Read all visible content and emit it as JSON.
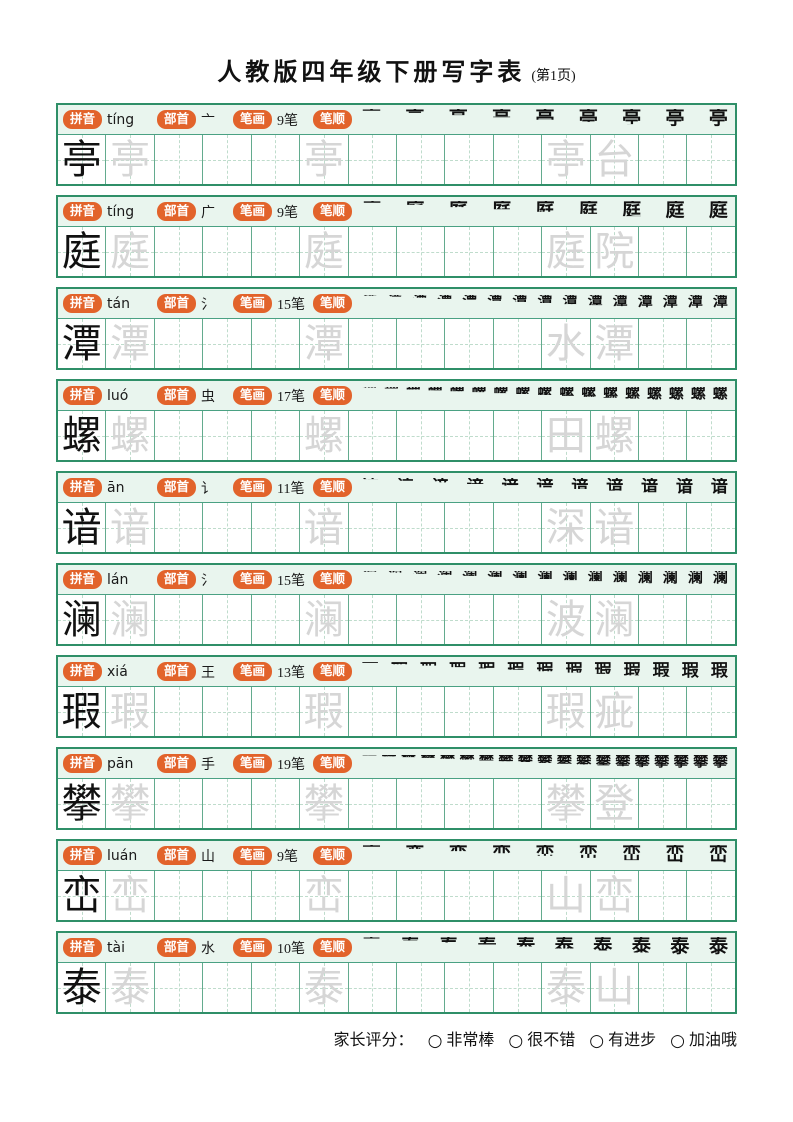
{
  "title": {
    "main": "人教版四年级下册写字表",
    "page_note": "(第1页)"
  },
  "labels": {
    "pinyin": "拼音",
    "radical": "部首",
    "strokes": "笔画",
    "stroke_order": "笔顺"
  },
  "grid": {
    "cells_per_row": 14
  },
  "rows": [
    {
      "character": "亭",
      "pinyin": "tíng",
      "radical": "亠",
      "stroke_count": 9,
      "strokes_label": "9笔",
      "trace_word": "亭台",
      "traces": [
        {
          "cell": 2,
          "char": "亭"
        },
        {
          "cell": 6,
          "char": "亭"
        },
        {
          "cell": 11,
          "char": "亭"
        },
        {
          "cell": 12,
          "char": "台"
        }
      ]
    },
    {
      "character": "庭",
      "pinyin": "tíng",
      "radical": "广",
      "stroke_count": 9,
      "strokes_label": "9笔",
      "trace_word": "庭院",
      "traces": [
        {
          "cell": 2,
          "char": "庭"
        },
        {
          "cell": 6,
          "char": "庭"
        },
        {
          "cell": 11,
          "char": "庭"
        },
        {
          "cell": 12,
          "char": "院"
        }
      ]
    },
    {
      "character": "潭",
      "pinyin": "tán",
      "radical": "氵",
      "stroke_count": 15,
      "strokes_label": "15笔",
      "trace_word": "水潭",
      "traces": [
        {
          "cell": 2,
          "char": "潭"
        },
        {
          "cell": 6,
          "char": "潭"
        },
        {
          "cell": 11,
          "char": "水"
        },
        {
          "cell": 12,
          "char": "潭"
        }
      ]
    },
    {
      "character": "螺",
      "pinyin": "luó",
      "radical": "虫",
      "stroke_count": 17,
      "strokes_label": "17笔",
      "trace_word": "田螺",
      "traces": [
        {
          "cell": 2,
          "char": "螺"
        },
        {
          "cell": 6,
          "char": "螺"
        },
        {
          "cell": 11,
          "char": "田"
        },
        {
          "cell": 12,
          "char": "螺"
        }
      ]
    },
    {
      "character": "谙",
      "pinyin": "ān",
      "radical": "讠",
      "stroke_count": 11,
      "strokes_label": "11笔",
      "trace_word": "深谙",
      "traces": [
        {
          "cell": 2,
          "char": "谙"
        },
        {
          "cell": 6,
          "char": "谙"
        },
        {
          "cell": 11,
          "char": "深"
        },
        {
          "cell": 12,
          "char": "谙"
        }
      ]
    },
    {
      "character": "澜",
      "pinyin": "lán",
      "radical": "氵",
      "stroke_count": 15,
      "strokes_label": "15笔",
      "trace_word": "波澜",
      "traces": [
        {
          "cell": 2,
          "char": "澜"
        },
        {
          "cell": 6,
          "char": "澜"
        },
        {
          "cell": 11,
          "char": "波"
        },
        {
          "cell": 12,
          "char": "澜"
        }
      ]
    },
    {
      "character": "瑕",
      "pinyin": "xiá",
      "radical": "王",
      "stroke_count": 13,
      "strokes_label": "13笔",
      "trace_word": "瑕疵",
      "traces": [
        {
          "cell": 2,
          "char": "瑕"
        },
        {
          "cell": 6,
          "char": "瑕"
        },
        {
          "cell": 11,
          "char": "瑕"
        },
        {
          "cell": 12,
          "char": "疵"
        }
      ]
    },
    {
      "character": "攀",
      "pinyin": "pān",
      "radical": "手",
      "stroke_count": 19,
      "strokes_label": "19笔",
      "trace_word": "攀登",
      "traces": [
        {
          "cell": 2,
          "char": "攀"
        },
        {
          "cell": 6,
          "char": "攀"
        },
        {
          "cell": 11,
          "char": "攀"
        },
        {
          "cell": 12,
          "char": "登"
        }
      ]
    },
    {
      "character": "峦",
      "pinyin": "luán",
      "radical": "山",
      "stroke_count": 9,
      "strokes_label": "9笔",
      "trace_word": "山峦",
      "traces": [
        {
          "cell": 2,
          "char": "峦"
        },
        {
          "cell": 6,
          "char": "峦"
        },
        {
          "cell": 11,
          "char": "山"
        },
        {
          "cell": 12,
          "char": "峦"
        }
      ]
    },
    {
      "character": "泰",
      "pinyin": "tài",
      "radical": "水",
      "stroke_count": 10,
      "strokes_label": "10笔",
      "trace_word": "泰山",
      "traces": [
        {
          "cell": 2,
          "char": "泰"
        },
        {
          "cell": 6,
          "char": "泰"
        },
        {
          "cell": 11,
          "char": "泰"
        },
        {
          "cell": 12,
          "char": "山"
        }
      ]
    }
  ],
  "footer": {
    "label": "家长评分：",
    "circle": "○",
    "options": [
      "非常棒",
      "很不错",
      "有进步",
      "加油哦"
    ]
  },
  "colors": {
    "pill_orange": "#e2632b",
    "header_bg": "#e9f5ee",
    "block_border": "#2f8f68",
    "cell_border": "#63ab8e",
    "dashed_line": "#bfdccc",
    "trace_gray": "#d6d6d6",
    "ink": "#111111"
  }
}
